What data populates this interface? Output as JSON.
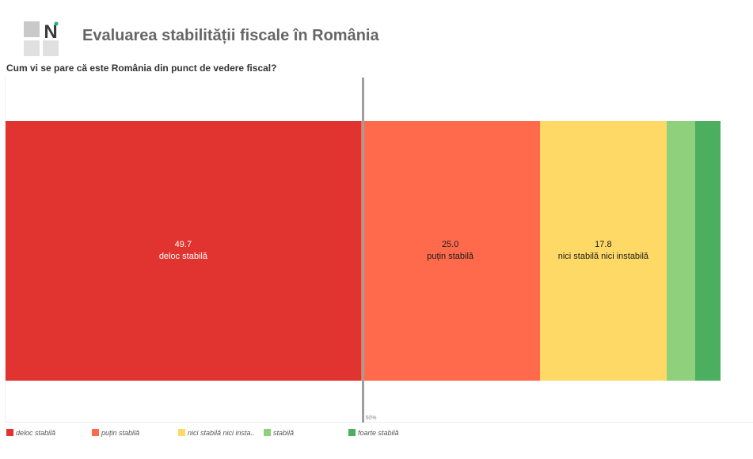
{
  "header": {
    "logo_letter": "N",
    "title": "Evaluarea stabilității fiscale în România",
    "question": "Cum vi se pare că este România din punct de vedere fiscal?"
  },
  "chart_data": {
    "type": "bar",
    "orientation": "horizontal-stacked",
    "title": "Evaluarea stabilității fiscale în România",
    "subtitle": "Cum vi se pare că este România din punct de vedere fiscal?",
    "xlim": [
      0,
      100
    ],
    "unit": "percent",
    "series": [
      {
        "name": "deloc stabilă",
        "value": 49.7,
        "color": "#E1332F",
        "label": "deloc stabilă",
        "value_label": "49.7",
        "text_color": "#ffffff"
      },
      {
        "name": "puțin stabilă",
        "value": 25.0,
        "color": "#FF6A4D",
        "label": "puțin stabilă",
        "value_label": "25.0",
        "text_color": "#1a1a1a"
      },
      {
        "name": "nici stabilă nici instabilă",
        "value": 17.8,
        "color": "#FFD966",
        "label": "nici stabilă nici instabilă",
        "value_label": "17.8",
        "text_color": "#1a1a1a"
      },
      {
        "name": "stabilă",
        "value": 4.0,
        "color": "#8ED07B",
        "label": "",
        "value_label": "",
        "text_color": "#1a1a1a"
      },
      {
        "name": "foarte stabilă",
        "value": 3.5,
        "color": "#4CAF60",
        "label": "",
        "value_label": "",
        "text_color": "#1a1a1a"
      }
    ],
    "reference_line": {
      "value": 50,
      "label": "50%"
    },
    "legend": [
      {
        "label": "deloc stabilă",
        "color": "#E1332F"
      },
      {
        "label": "puțin stabilă",
        "color": "#FF6A4D"
      },
      {
        "label": "nici stabilă nici insta..",
        "color": "#FFD966"
      },
      {
        "label": "stabilă",
        "color": "#8ED07B"
      },
      {
        "label": "foarte stabilă",
        "color": "#4CAF60"
      }
    ],
    "legend_position": "bottom-left"
  }
}
